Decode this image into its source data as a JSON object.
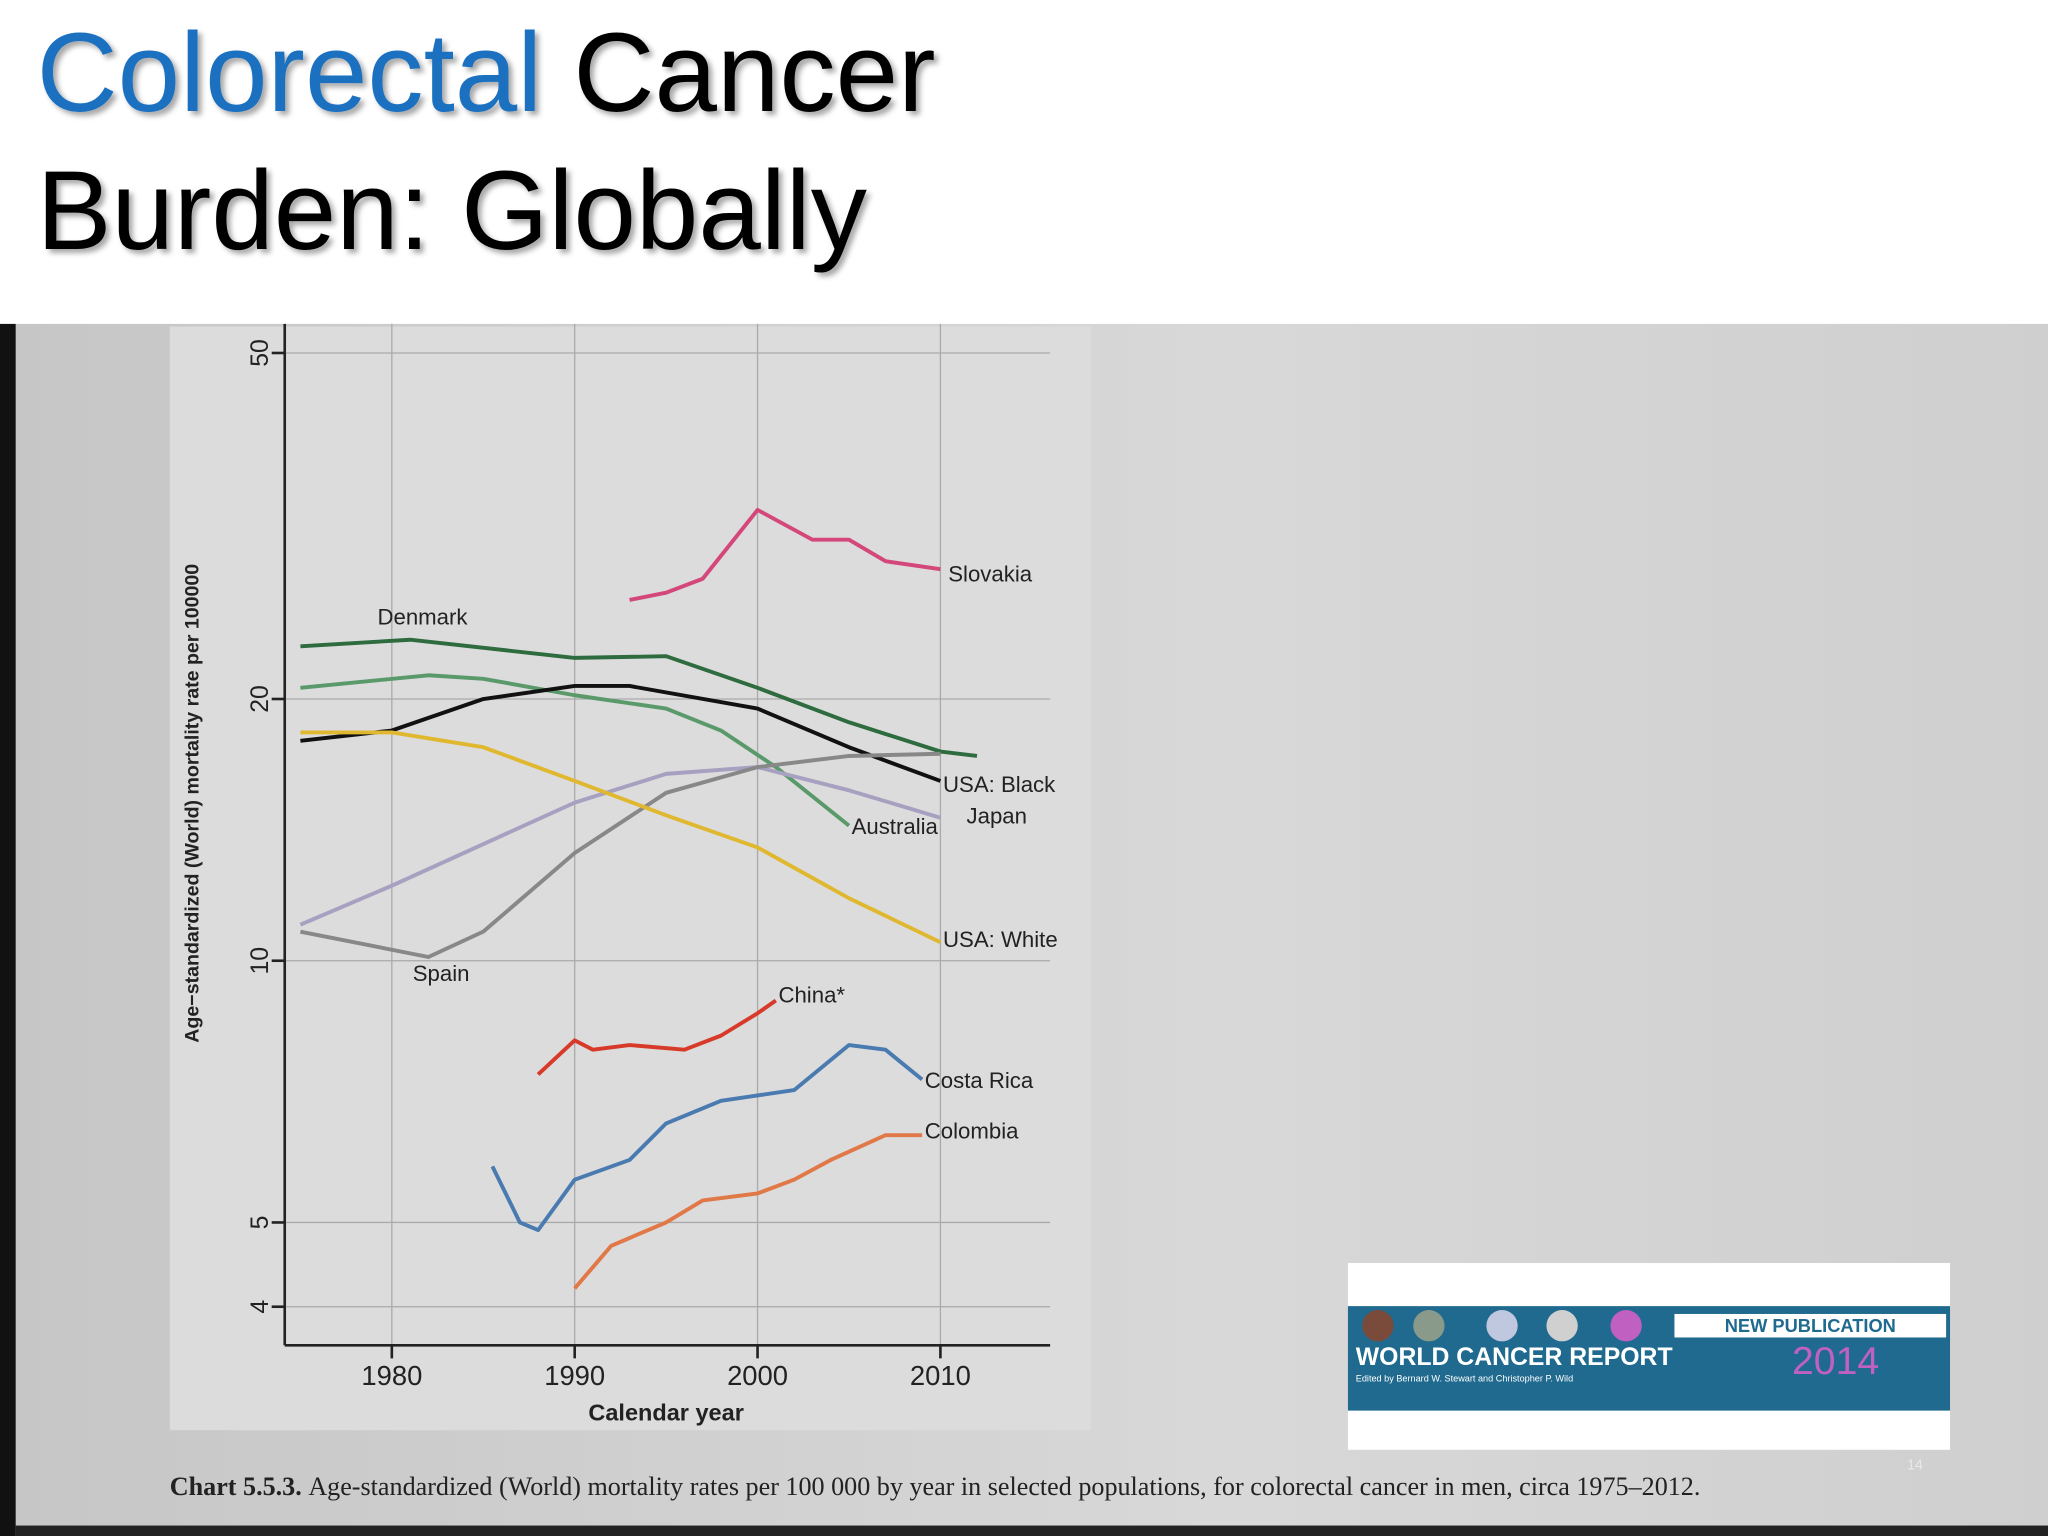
{
  "slide": {
    "title_highlight": "Colorectal",
    "title_rest": "Cancer",
    "subtitle": "Burden: Globally",
    "page_number": "14"
  },
  "caption": {
    "label": "Chart 5.5.3.",
    "text": "Age-standardized (World) mortality rates per 100 000 by year in selected populations, for colorectal cancer in men, circa 1975–2012."
  },
  "banner": {
    "tag": "NEW PUBLICATION",
    "name": "WORLD CANCER REPORT",
    "year": "2014",
    "editors": "Edited by Bernard W. Stewart and Christopher P. Wild"
  },
  "chart_data": {
    "type": "line",
    "x_label": "Calendar year",
    "y_label": "Age−standardized (World) mortality rate per 100000",
    "log_y": true,
    "grid": true,
    "xlim": [
      1975,
      2016
    ],
    "xticks": [
      1980,
      1990,
      2000,
      2010
    ],
    "ylim": [
      3.7,
      54
    ],
    "yticks": [
      4,
      5,
      10,
      20,
      50
    ],
    "series": [
      {
        "name": "Slovakia",
        "color": "#d4477a",
        "x": [
          1993,
          1995,
          1997,
          2000,
          2003,
          2005,
          2007,
          2010
        ],
        "values": [
          26,
          26.5,
          27.5,
          33,
          30.5,
          30.5,
          28.8,
          28.2
        ]
      },
      {
        "name": "Denmark",
        "color": "#2e6b3e",
        "x": [
          1975,
          1981,
          1990,
          1995,
          2000,
          2005,
          2010,
          2012
        ],
        "values": [
          23,
          23.4,
          22.3,
          22.4,
          20.6,
          18.8,
          17.4,
          17.2
        ]
      },
      {
        "name": "Australia",
        "color": "#5a9a6a",
        "x": [
          1975,
          1982,
          1985,
          1990,
          1995,
          1998,
          2001,
          2005
        ],
        "values": [
          20.6,
          21.3,
          21.1,
          20.2,
          19.5,
          18.4,
          16.7,
          14.3
        ]
      },
      {
        "name": "USA: Black",
        "color": "#111111",
        "x": [
          1975,
          1980,
          1985,
          1990,
          1993,
          2000,
          2005,
          2010
        ],
        "values": [
          17.9,
          18.4,
          20,
          20.7,
          20.7,
          19.5,
          17.6,
          16.1
        ]
      },
      {
        "name": "Japan",
        "color": "#a8a0c0",
        "x": [
          1975,
          1980,
          1990,
          1995,
          2000,
          2005,
          2010
        ],
        "values": [
          11,
          12.2,
          15.2,
          16.4,
          16.7,
          15.7,
          14.6
        ]
      },
      {
        "name": "Spain",
        "color": "#888888",
        "x": [
          1975,
          1982,
          1985,
          1990,
          1995,
          2000,
          2005,
          2010
        ],
        "values": [
          10.8,
          10.1,
          10.8,
          13.3,
          15.6,
          16.7,
          17.2,
          17.3
        ]
      },
      {
        "name": "USA: White",
        "color": "#e0b830",
        "x": [
          1975,
          1980,
          1985,
          1990,
          1995,
          2000,
          2005,
          2010
        ],
        "values": [
          18.3,
          18.3,
          17.6,
          16.1,
          14.7,
          13.5,
          11.8,
          10.5
        ]
      },
      {
        "name": "China*",
        "color": "#d83a2a",
        "x": [
          1988,
          1990,
          1991,
          1993,
          1996,
          1998,
          2000,
          2001
        ],
        "values": [
          7.4,
          8.1,
          7.9,
          8.0,
          7.9,
          8.2,
          8.7,
          9.0
        ]
      },
      {
        "name": "Costa Rica",
        "color": "#4a7bb0",
        "x": [
          1985.5,
          1987,
          1988,
          1990,
          1993,
          1995,
          1998,
          2000,
          2002,
          2005,
          2007,
          2009
        ],
        "values": [
          5.8,
          5.0,
          4.9,
          5.6,
          5.9,
          6.5,
          6.9,
          7.0,
          7.1,
          8.0,
          7.9,
          7.3
        ]
      },
      {
        "name": "Colombia",
        "color": "#e07848",
        "x": [
          1990,
          1992,
          1995,
          1997,
          2000,
          2002,
          2004,
          2007,
          2009
        ],
        "values": [
          4.2,
          4.7,
          5.0,
          5.3,
          5.4,
          5.6,
          5.9,
          6.3,
          6.3
        ]
      }
    ]
  }
}
